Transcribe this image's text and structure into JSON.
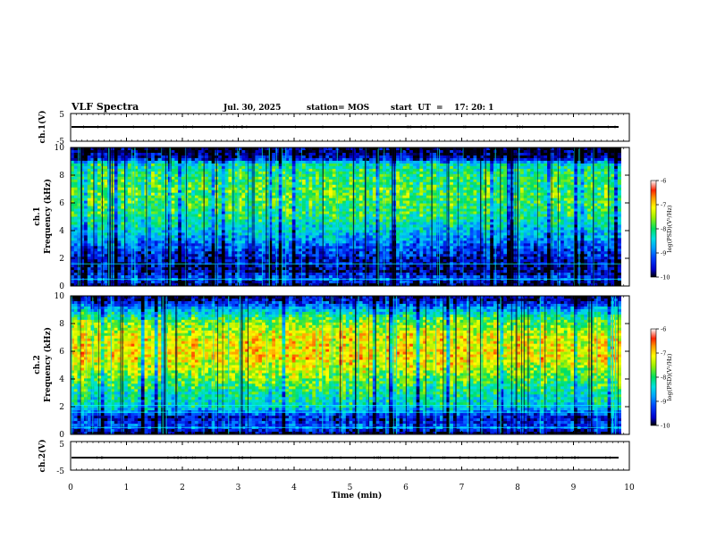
{
  "header": {
    "title": "VLF Spectra",
    "date": "Jul. 30, 2025",
    "station": "station= MOS",
    "start": "start  UT  =    17: 20: 1"
  },
  "colors": {
    "colormap": [
      "#000000",
      "#0000cc",
      "#0044ff",
      "#00a0ff",
      "#00e0e0",
      "#00e060",
      "#a0f000",
      "#ffff00",
      "#ff9900",
      "#ff2200",
      "#ffffff"
    ]
  },
  "chart_data": [
    {
      "type": "line",
      "panel": "ch1-waveform",
      "ylabel": "ch.1(V)",
      "ylim": [
        -5,
        5
      ],
      "yticks": [
        "5",
        "-5"
      ],
      "baseline": 0,
      "xlim": [
        0,
        10
      ]
    },
    {
      "type": "heatmap",
      "panel": "ch1-spectrogram",
      "ylabel": "ch.1\nFrequency (kHz)",
      "ylim": [
        0,
        10
      ],
      "yticks": [
        "0",
        "2",
        "4",
        "6",
        "8",
        "10"
      ],
      "xlim": [
        0,
        10
      ],
      "data_end_min": 9.85,
      "colorbar": {
        "label": "log(PSD)(V²/Hz)",
        "min": -10,
        "max": -6,
        "ticks": [
          "-6",
          "-7",
          "-8",
          "-9",
          "-10"
        ]
      },
      "band_profile": [
        {
          "f": 0.0,
          "v": -10
        },
        {
          "f": 0.5,
          "v": -9.0
        },
        {
          "f": 1.0,
          "v": -9.6
        },
        {
          "f": 1.6,
          "v": -9.6
        },
        {
          "f": 2.4,
          "v": -9.3
        },
        {
          "f": 3.5,
          "v": -8.6
        },
        {
          "f": 5.0,
          "v": -7.9
        },
        {
          "f": 6.5,
          "v": -7.6
        },
        {
          "f": 8.0,
          "v": -7.8
        },
        {
          "f": 8.8,
          "v": -8.1
        },
        {
          "f": 9.2,
          "v": -9.6
        },
        {
          "f": 10.0,
          "v": -10
        }
      ],
      "lines_khz": [
        0.5,
        1.6
      ]
    },
    {
      "type": "heatmap",
      "panel": "ch2-spectrogram",
      "ylabel": "ch.2\nFrequency (kHz)",
      "ylim": [
        0,
        10
      ],
      "yticks": [
        "0",
        "2",
        "4",
        "6",
        "8",
        "10"
      ],
      "xlim": [
        0,
        10
      ],
      "data_end_min": 9.85,
      "colorbar": {
        "label": "log(PSD)(V²/Hz)",
        "min": -10,
        "max": -6,
        "ticks": [
          "-6",
          "-7",
          "-8",
          "-9",
          "-10"
        ]
      },
      "band_profile": [
        {
          "f": 0.0,
          "v": -10
        },
        {
          "f": 0.5,
          "v": -9.0
        },
        {
          "f": 1.2,
          "v": -9.4
        },
        {
          "f": 2.0,
          "v": -8.2
        },
        {
          "f": 3.0,
          "v": -8.0
        },
        {
          "f": 4.2,
          "v": -7.4
        },
        {
          "f": 5.5,
          "v": -6.8
        },
        {
          "f": 7.0,
          "v": -6.9
        },
        {
          "f": 8.2,
          "v": -7.5
        },
        {
          "f": 9.0,
          "v": -8.5
        },
        {
          "f": 9.6,
          "v": -9.4
        },
        {
          "f": 10.0,
          "v": -9.8
        }
      ],
      "lines_khz": [
        0.5,
        1.6,
        2.1
      ]
    },
    {
      "type": "line",
      "panel": "ch2-waveform",
      "ylabel": "ch.2(V)",
      "ylim": [
        -5,
        5
      ],
      "yticks": [
        "5",
        "-5"
      ],
      "baseline": 0,
      "xlim": [
        0,
        10
      ]
    }
  ],
  "xaxis": {
    "label": "Time (min)",
    "ticks": [
      "0",
      "1",
      "2",
      "3",
      "4",
      "5",
      "6",
      "7",
      "8",
      "9",
      "10"
    ]
  }
}
